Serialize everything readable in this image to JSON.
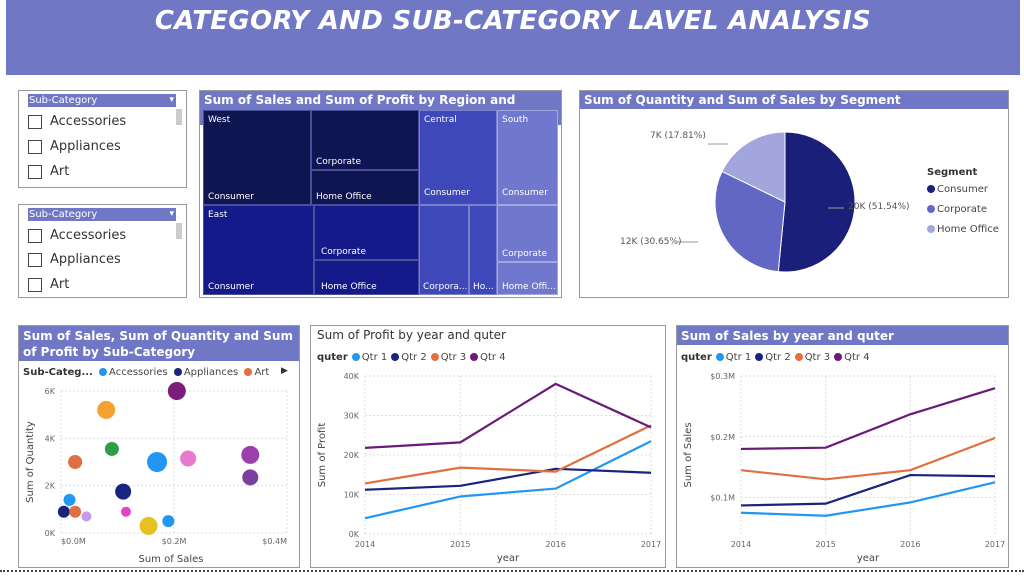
{
  "dashboard": {
    "title": "CATEGORY AND SUB-CATEGORY LAVEL ANALYSIS",
    "accent": "#7078C6"
  },
  "slicers": [
    {
      "header": "Sub-Category",
      "items": [
        "Accessories",
        "Appliances",
        "Art"
      ]
    },
    {
      "header": "Sub-Category",
      "items": [
        "Accessories",
        "Appliances",
        "Art"
      ]
    }
  ],
  "treemap": {
    "title": "Sum of Sales and Sum of Profit by Region and Segment",
    "regions": [
      "West",
      "East",
      "Central",
      "South"
    ],
    "labels": {
      "west_consumer": "Consumer",
      "west_corporate": "Corporate",
      "west_homeoffice": "Home Office",
      "east_consumer": "Consumer",
      "east_corporate": "Corporate",
      "east_homeoffice": "Home Office",
      "central_consumer": "Consumer",
      "central_corporate": "Corpora...",
      "central_homeoffice": "Ho...",
      "south_consumer": "Consumer",
      "south_corporate": "Corporate",
      "south_homeoffice": "Home Offi..."
    }
  },
  "pie": {
    "title": "Sum of Quantity and Sum of Sales by Segment",
    "legend_title": "Segment",
    "slices": [
      {
        "name": "Consumer",
        "pct": 51.54,
        "label": "20K (51.54%)",
        "color": "#1A1F7A"
      },
      {
        "name": "Corporate",
        "pct": 30.65,
        "label": "12K (30.65%)",
        "color": "#6167C2"
      },
      {
        "name": "Home Office",
        "pct": 17.81,
        "label": "7K (17.81%)",
        "color": "#A2A6DC"
      }
    ]
  },
  "scatter": {
    "title": "Sum of Sales, Sum of Quantity and Sum of Profit by Sub-Category",
    "legend_title": "Sub-Categ...",
    "legend": [
      {
        "name": "Accessories",
        "color": "#2196F3"
      },
      {
        "name": "Appliances",
        "color": "#1A237E"
      },
      {
        "name": "Art",
        "color": "#E07040"
      }
    ],
    "xlabel": "Sum of Sales",
    "ylabel": "Sum of Quantity",
    "xticks": [
      "$0.0M",
      "$0.2M",
      "$0.4M"
    ],
    "yticks": [
      "0K",
      "2K",
      "4K",
      "6K"
    ]
  },
  "profit_chart": {
    "title": "Sum of Profit by year and quter",
    "legend_title": "quter",
    "xlabel": "year",
    "ylabel": "Sum of Profit",
    "yticks": [
      "0K",
      "10K",
      "20K",
      "30K",
      "40K"
    ]
  },
  "sales_chart": {
    "title": "Sum of Sales by year and quter",
    "legend_title": "quter",
    "xlabel": "year",
    "ylabel": "Sum of Sales",
    "yticks": [
      "$0.1M",
      "$0.2M",
      "$0.3M"
    ]
  },
  "chart_data": [
    {
      "type": "scatter",
      "title": "Sum of Sales, Sum of Quantity and Sum of Profit by Sub-Category",
      "xlabel": "Sum of Sales",
      "ylabel": "Sum of Quantity",
      "xlim": [
        0,
        0.4
      ],
      "ylim": [
        0,
        6000
      ],
      "points": [
        {
          "x": 0.08,
          "y": 5200,
          "size": 9,
          "color": "#F5A030"
        },
        {
          "x": 0.205,
          "y": 6000,
          "size": 9,
          "color": "#7B1E7A"
        },
        {
          "x": 0.09,
          "y": 3550,
          "size": 7,
          "color": "#2E9E4A"
        },
        {
          "x": 0.025,
          "y": 3000,
          "size": 7,
          "color": "#E07040"
        },
        {
          "x": 0.17,
          "y": 3000,
          "size": 10,
          "color": "#2196F3"
        },
        {
          "x": 0.225,
          "y": 3150,
          "size": 8,
          "color": "#E67AD0"
        },
        {
          "x": 0.335,
          "y": 3300,
          "size": 9,
          "color": "#9E3FB0"
        },
        {
          "x": 0.335,
          "y": 2350,
          "size": 8,
          "color": "#7B3FA0"
        },
        {
          "x": 0.11,
          "y": 1750,
          "size": 8,
          "color": "#1A237E"
        },
        {
          "x": 0.015,
          "y": 1400,
          "size": 6,
          "color": "#2196F3"
        },
        {
          "x": 0.005,
          "y": 900,
          "size": 6,
          "color": "#1A237E"
        },
        {
          "x": 0.025,
          "y": 900,
          "size": 6,
          "color": "#E07040"
        },
        {
          "x": 0.045,
          "y": 700,
          "size": 5,
          "color": "#C39BE8"
        },
        {
          "x": 0.115,
          "y": 900,
          "size": 5,
          "color": "#E044C0"
        },
        {
          "x": 0.155,
          "y": 300,
          "size": 9,
          "color": "#E8C020"
        },
        {
          "x": 0.19,
          "y": 500,
          "size": 6,
          "color": "#2196F3"
        }
      ]
    },
    {
      "type": "line",
      "title": "Sum of Profit by year and quter",
      "xlabel": "year",
      "ylabel": "Sum of Profit",
      "x": [
        2014,
        2015,
        2016,
        2017
      ],
      "ylim": [
        0,
        40000
      ],
      "series": [
        {
          "name": "Qtr 1",
          "color": "#2196F3",
          "values": [
            4000,
            9500,
            11500,
            23500
          ]
        },
        {
          "name": "Qtr 2",
          "color": "#1A237E",
          "values": [
            11200,
            12200,
            16500,
            15500
          ]
        },
        {
          "name": "Qtr 3",
          "color": "#E07040",
          "values": [
            12800,
            16800,
            15800,
            27500
          ]
        },
        {
          "name": "Qtr 4",
          "color": "#6A1B7A",
          "values": [
            21800,
            23200,
            38000,
            27000
          ]
        }
      ]
    },
    {
      "type": "line",
      "title": "Sum of Sales by year and quter",
      "xlabel": "year",
      "ylabel": "Sum of Sales",
      "x": [
        2014,
        2015,
        2016,
        2017
      ],
      "ylim": [
        0.04,
        0.3
      ],
      "series": [
        {
          "name": "Qtr 1",
          "color": "#2196F3",
          "values": [
            0.075,
            0.07,
            0.092,
            0.125
          ]
        },
        {
          "name": "Qtr 2",
          "color": "#1A237E",
          "values": [
            0.087,
            0.09,
            0.137,
            0.135
          ]
        },
        {
          "name": "Qtr 3",
          "color": "#E07040",
          "values": [
            0.145,
            0.13,
            0.145,
            0.198
          ]
        },
        {
          "name": "Qtr 4",
          "color": "#6A1B7A",
          "values": [
            0.18,
            0.182,
            0.237,
            0.28
          ]
        }
      ]
    }
  ]
}
